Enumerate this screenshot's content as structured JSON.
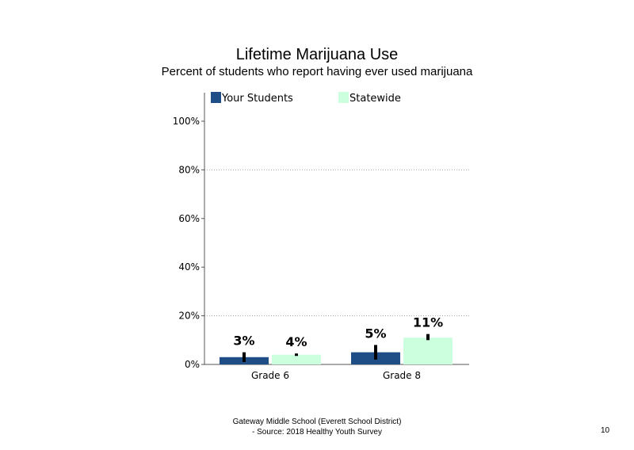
{
  "page": {
    "footer_line1": "Gateway Middle School (Everett School District)",
    "footer_line2": "- Source: 2018 Healthy Youth Survey",
    "page_number": "10"
  },
  "chart_data": {
    "type": "bar",
    "title": "Lifetime Marijuana Use",
    "subtitle": "Percent of students who report having ever used marijuana",
    "categories": [
      "Grade 6",
      "Grade 8"
    ],
    "series": [
      {
        "name": "Your Students",
        "values": [
          3,
          5
        ],
        "labels": [
          "3%",
          "5%"
        ],
        "error": [
          [
            1,
            5
          ],
          [
            2,
            8
          ]
        ],
        "color": "#1f4e86"
      },
      {
        "name": "Statewide",
        "values": [
          4,
          11
        ],
        "labels": [
          "4%",
          "11%"
        ],
        "error": [
          [
            3.5,
            4.5
          ],
          [
            10,
            12.5
          ]
        ],
        "color": "#ccffdd"
      }
    ],
    "ylim": [
      0,
      100
    ],
    "yticks": [
      0,
      20,
      40,
      60,
      80,
      100
    ],
    "ytick_labels": [
      "0%",
      "20%",
      "40%",
      "60%",
      "80%",
      "100%"
    ],
    "grid_at": [
      20,
      80
    ],
    "grid_style": "dotted",
    "legend_position": "top"
  }
}
